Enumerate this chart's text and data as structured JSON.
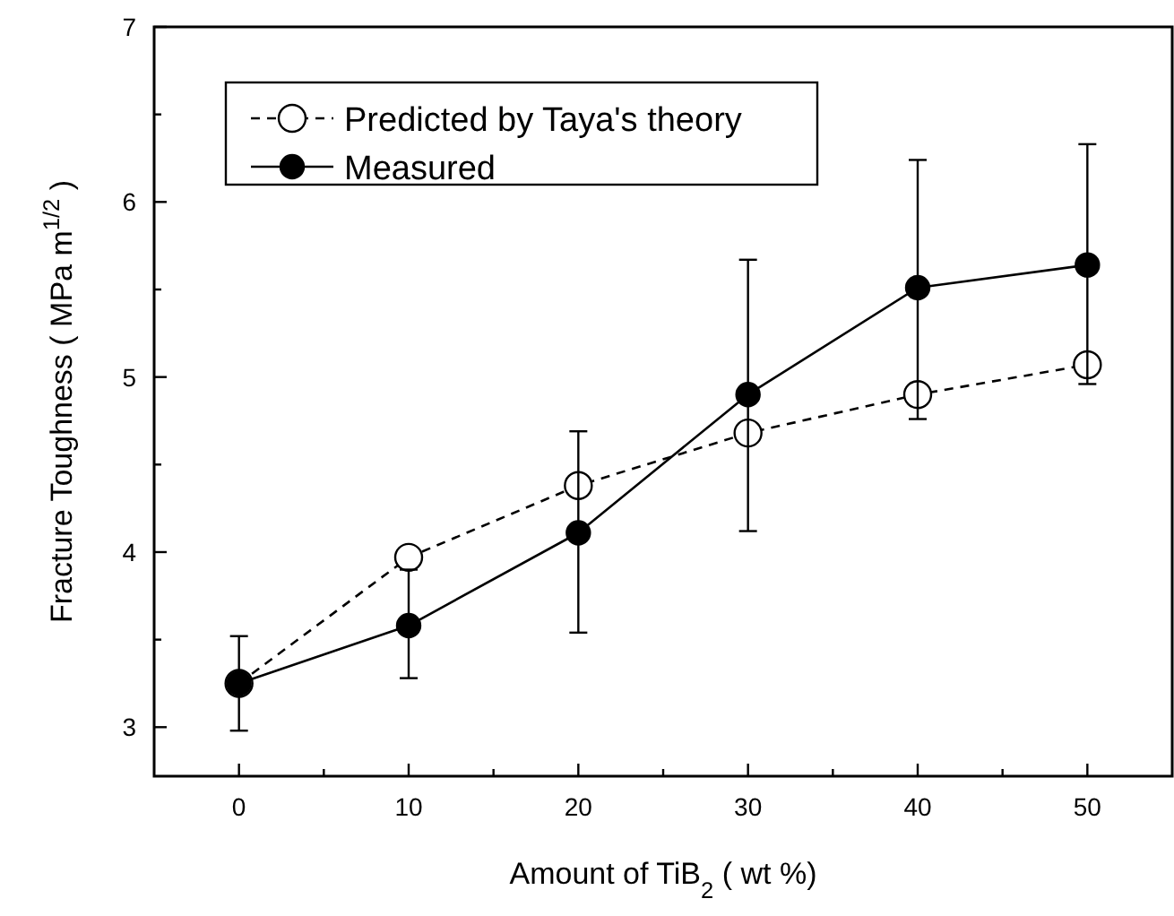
{
  "chart_data": {
    "type": "line",
    "xlabel": "Amount of TiB$_{2}$ ( wt %)",
    "ylabel": "Fracture Toughness ( MPa m$^{1/2}$ )",
    "x": [
      0,
      10,
      20,
      30,
      40,
      50
    ],
    "xlim": [
      -5,
      55
    ],
    "xticks": [
      0,
      {
        "value": 5,
        "label": null
      },
      10,
      {
        "value": 15,
        "label": null
      },
      20,
      {
        "value": 25,
        "label": null
      },
      30,
      {
        "value": 35,
        "label": null
      },
      40,
      {
        "value": 45,
        "label": null
      },
      50
    ],
    "ylim": [
      2.72,
      7
    ],
    "yticks": [
      3,
      {
        "value": 3.5,
        "label": null
      },
      4,
      {
        "value": 4.5,
        "label": null
      },
      5,
      {
        "value": 5.5,
        "label": null
      },
      6,
      {
        "value": 6.5,
        "label": null
      },
      7
    ],
    "grid": false,
    "legend": "top left",
    "marker": "circle",
    "series": [
      {
        "name": "Predicted by Taya's theory",
        "color": "#000000",
        "line_style": "dashed",
        "values": [
          3.25,
          3.97,
          4.38,
          4.68,
          4.9,
          5.07
        ]
      },
      {
        "name": "Measured",
        "color": "#000000",
        "line_style": "solid",
        "values": [
          3.25,
          3.58,
          4.11,
          4.9,
          5.51,
          5.64
        ],
        "errors": [
          [
            2.98,
            3.52
          ],
          [
            3.28,
            3.9
          ],
          [
            3.54,
            4.69
          ],
          [
            4.12,
            5.67
          ],
          [
            4.76,
            6.24
          ],
          [
            4.96,
            6.33
          ]
        ]
      }
    ]
  }
}
